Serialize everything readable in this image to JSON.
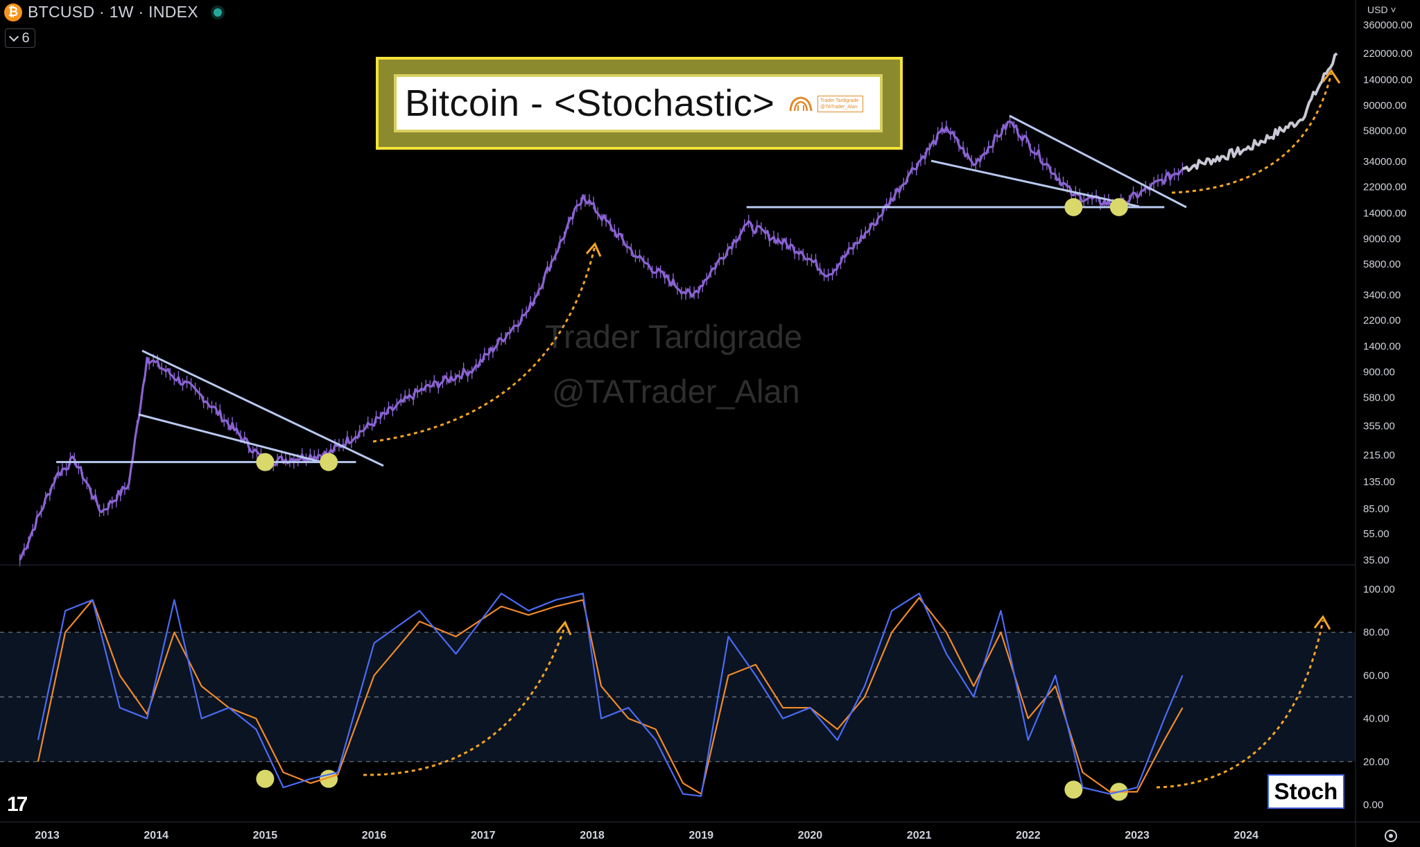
{
  "header": {
    "symbol_label": "BTCUSD · 1W · INDEX",
    "logo_glyph": "₿",
    "collapse_count": "6",
    "currency": "USD",
    "currency_chevron": "˅"
  },
  "title": {
    "text": "Bitcoin - <Stochastic>",
    "logo_line1": "Trader Tardigrade",
    "logo_line2": "@TATrader_Alan"
  },
  "watermark": {
    "line1": "Trader Tardigrade",
    "line2": "@TATrader_Alan"
  },
  "stoch_label": "Stoch",
  "tv_logo": "17",
  "colors": {
    "candles": "#8a63d2",
    "projection": "#c9c9d6",
    "trendline": "#b8c9ef",
    "marker": "#d9d86a",
    "arrow": "#f5a623",
    "k_line": "#4a6cf7",
    "d_line": "#f08a2a",
    "band_fill": "#0b1422"
  },
  "chart_data": [
    {
      "type": "line",
      "title": "",
      "scale": "log",
      "x": [
        "2012-10",
        "2013-02",
        "2013-04",
        "2013-07",
        "2013-10",
        "2013-12",
        "2014-06",
        "2015-01",
        "2015-08",
        "2016-06",
        "2016-12",
        "2017-06",
        "2017-12",
        "2018-06",
        "2018-12",
        "2019-06",
        "2019-12",
        "2020-03",
        "2020-08",
        "2020-12",
        "2021-04",
        "2021-07",
        "2021-11",
        "2022-06",
        "2022-11",
        "2023-06",
        "2024-01",
        "2024-07",
        "2024-11"
      ],
      "y": [
        35,
        150,
        200,
        80,
        130,
        1150,
        600,
        190,
        220,
        650,
        950,
        2600,
        19000,
        6500,
        3300,
        11500,
        7200,
        4800,
        11500,
        28000,
        62000,
        32000,
        68000,
        19000,
        16000,
        30000,
        42000,
        70000,
        220000
      ],
      "projection_from_index": 25,
      "y_ticks": [
        "360000.00",
        "220000.00",
        "140000.00",
        "90000.00",
        "58000.00",
        "34000.00",
        "22000.00",
        "14000.00",
        "9000.00",
        "5800.00",
        "3400.00",
        "2200.00",
        "1400.00",
        "900.00",
        "580.00",
        "355.00",
        "215.00",
        "135.00",
        "85.00",
        "55.00",
        "35.00"
      ],
      "support_lines": [
        {
          "from": "2013-02",
          "to": "2015-11",
          "value": 190
        },
        {
          "from": "2019-06",
          "to": "2023-04",
          "value": 15500
        }
      ],
      "bottom_markers": [
        "2015-01",
        "2015-08",
        "2022-06",
        "2022-11"
      ]
    },
    {
      "type": "line",
      "title": "",
      "series_name": "Stoch",
      "ylim": [
        0,
        100
      ],
      "y_ticks": [
        "100.00",
        "80.00",
        "60.00",
        "40.00",
        "20.00",
        "0.00"
      ],
      "bands": [
        20,
        50,
        80
      ],
      "k": {
        "x": [
          "2012-12",
          "2013-03",
          "2013-06",
          "2013-09",
          "2013-12",
          "2014-03",
          "2014-06",
          "2014-09",
          "2014-12",
          "2015-03",
          "2015-06",
          "2015-09",
          "2016-01",
          "2016-06",
          "2016-10",
          "2017-03",
          "2017-06",
          "2017-09",
          "2017-12",
          "2018-02",
          "2018-05",
          "2018-08",
          "2018-11",
          "2019-01",
          "2019-04",
          "2019-07",
          "2019-10",
          "2020-01",
          "2020-04",
          "2020-07",
          "2020-10",
          "2021-01",
          "2021-04",
          "2021-07",
          "2021-10",
          "2022-01",
          "2022-04",
          "2022-07",
          "2022-10",
          "2023-01",
          "2023-04",
          "2023-06"
        ],
        "y": [
          30,
          90,
          95,
          45,
          40,
          95,
          40,
          45,
          35,
          8,
          12,
          15,
          75,
          90,
          70,
          98,
          90,
          95,
          98,
          40,
          45,
          30,
          5,
          4,
          78,
          60,
          40,
          45,
          30,
          55,
          90,
          98,
          70,
          50,
          90,
          30,
          60,
          8,
          5,
          8,
          40,
          60
        ]
      },
      "d": {
        "x": [
          "2012-12",
          "2013-03",
          "2013-06",
          "2013-09",
          "2013-12",
          "2014-03",
          "2014-06",
          "2014-09",
          "2014-12",
          "2015-03",
          "2015-06",
          "2015-09",
          "2016-01",
          "2016-06",
          "2016-10",
          "2017-03",
          "2017-06",
          "2017-09",
          "2017-12",
          "2018-02",
          "2018-05",
          "2018-08",
          "2018-11",
          "2019-01",
          "2019-04",
          "2019-07",
          "2019-10",
          "2020-01",
          "2020-04",
          "2020-07",
          "2020-10",
          "2021-01",
          "2021-04",
          "2021-07",
          "2021-10",
          "2022-01",
          "2022-04",
          "2022-07",
          "2022-10",
          "2023-01",
          "2023-04",
          "2023-06"
        ],
        "y": [
          20,
          80,
          95,
          60,
          42,
          80,
          55,
          45,
          40,
          15,
          10,
          14,
          60,
          85,
          78,
          92,
          88,
          92,
          95,
          55,
          40,
          35,
          10,
          5,
          60,
          65,
          45,
          45,
          35,
          50,
          80,
          96,
          80,
          55,
          80,
          40,
          55,
          15,
          6,
          6,
          30,
          45
        ]
      },
      "bottom_markers": [
        [
          "2015-01",
          12
        ],
        [
          "2015-08",
          12
        ],
        [
          "2022-06",
          7
        ],
        [
          "2022-11",
          6
        ]
      ]
    }
  ],
  "x_axis_years": [
    "2013",
    "2014",
    "2015",
    "2016",
    "2017",
    "2018",
    "2019",
    "2020",
    "2021",
    "2022",
    "2023",
    "2024"
  ]
}
